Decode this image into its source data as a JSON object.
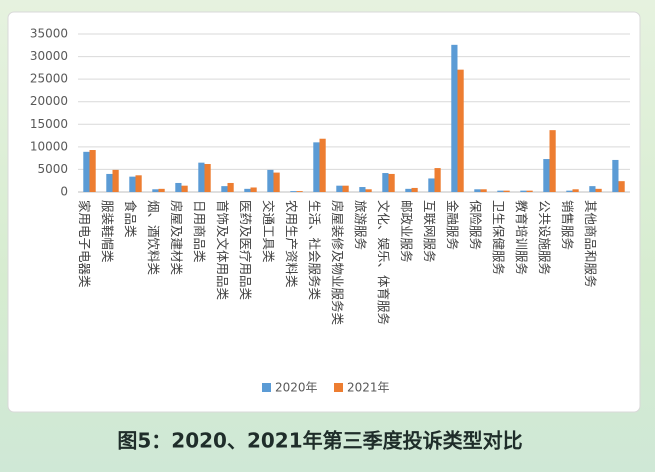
{
  "chart_data": {
    "type": "bar",
    "title": "图5：2020、2021年第三季度投诉类型对比",
    "categories": [
      "家用电子电器类",
      "服装鞋帽类",
      "食品类",
      "烟、酒饮料类",
      "房屋及建材类",
      "日用商品类",
      "首饰及文体用品类",
      "医药及医疗用品类",
      "交通工具类",
      "农用生产资料类",
      "生活、社会服务类",
      "房屋装修及物业服务类",
      "旅游服务",
      "文化、娱乐、体育服务",
      "邮政业服务",
      "互联网服务",
      "金融服务",
      "保险服务",
      "卫生保健服务",
      "教育培训服务",
      "公共设施服务",
      "销售服务",
      "其他商品和服务",
      null
    ],
    "series": [
      {
        "name": "2020年",
        "color": "#5b9bd5",
        "values": [
          8900,
          4000,
          3400,
          600,
          2000,
          6500,
          1300,
          700,
          4900,
          200,
          11000,
          1400,
          1100,
          4200,
          700,
          3000,
          32600,
          600,
          300,
          300,
          7300,
          300,
          1300,
          7100
        ]
      },
      {
        "name": "2021年",
        "color": "#ed7d31",
        "values": [
          9300,
          4900,
          3700,
          700,
          1400,
          6200,
          2000,
          1000,
          4300,
          200,
          11800,
          1400,
          600,
          4000,
          900,
          5300,
          27100,
          600,
          300,
          300,
          13700,
          600,
          700,
          2400
        ]
      }
    ],
    "ylim": [
      0,
      35000
    ],
    "yticks": [
      0,
      5000,
      10000,
      15000,
      20000,
      25000,
      30000,
      35000
    ],
    "grid": true,
    "legend": "bottom"
  }
}
